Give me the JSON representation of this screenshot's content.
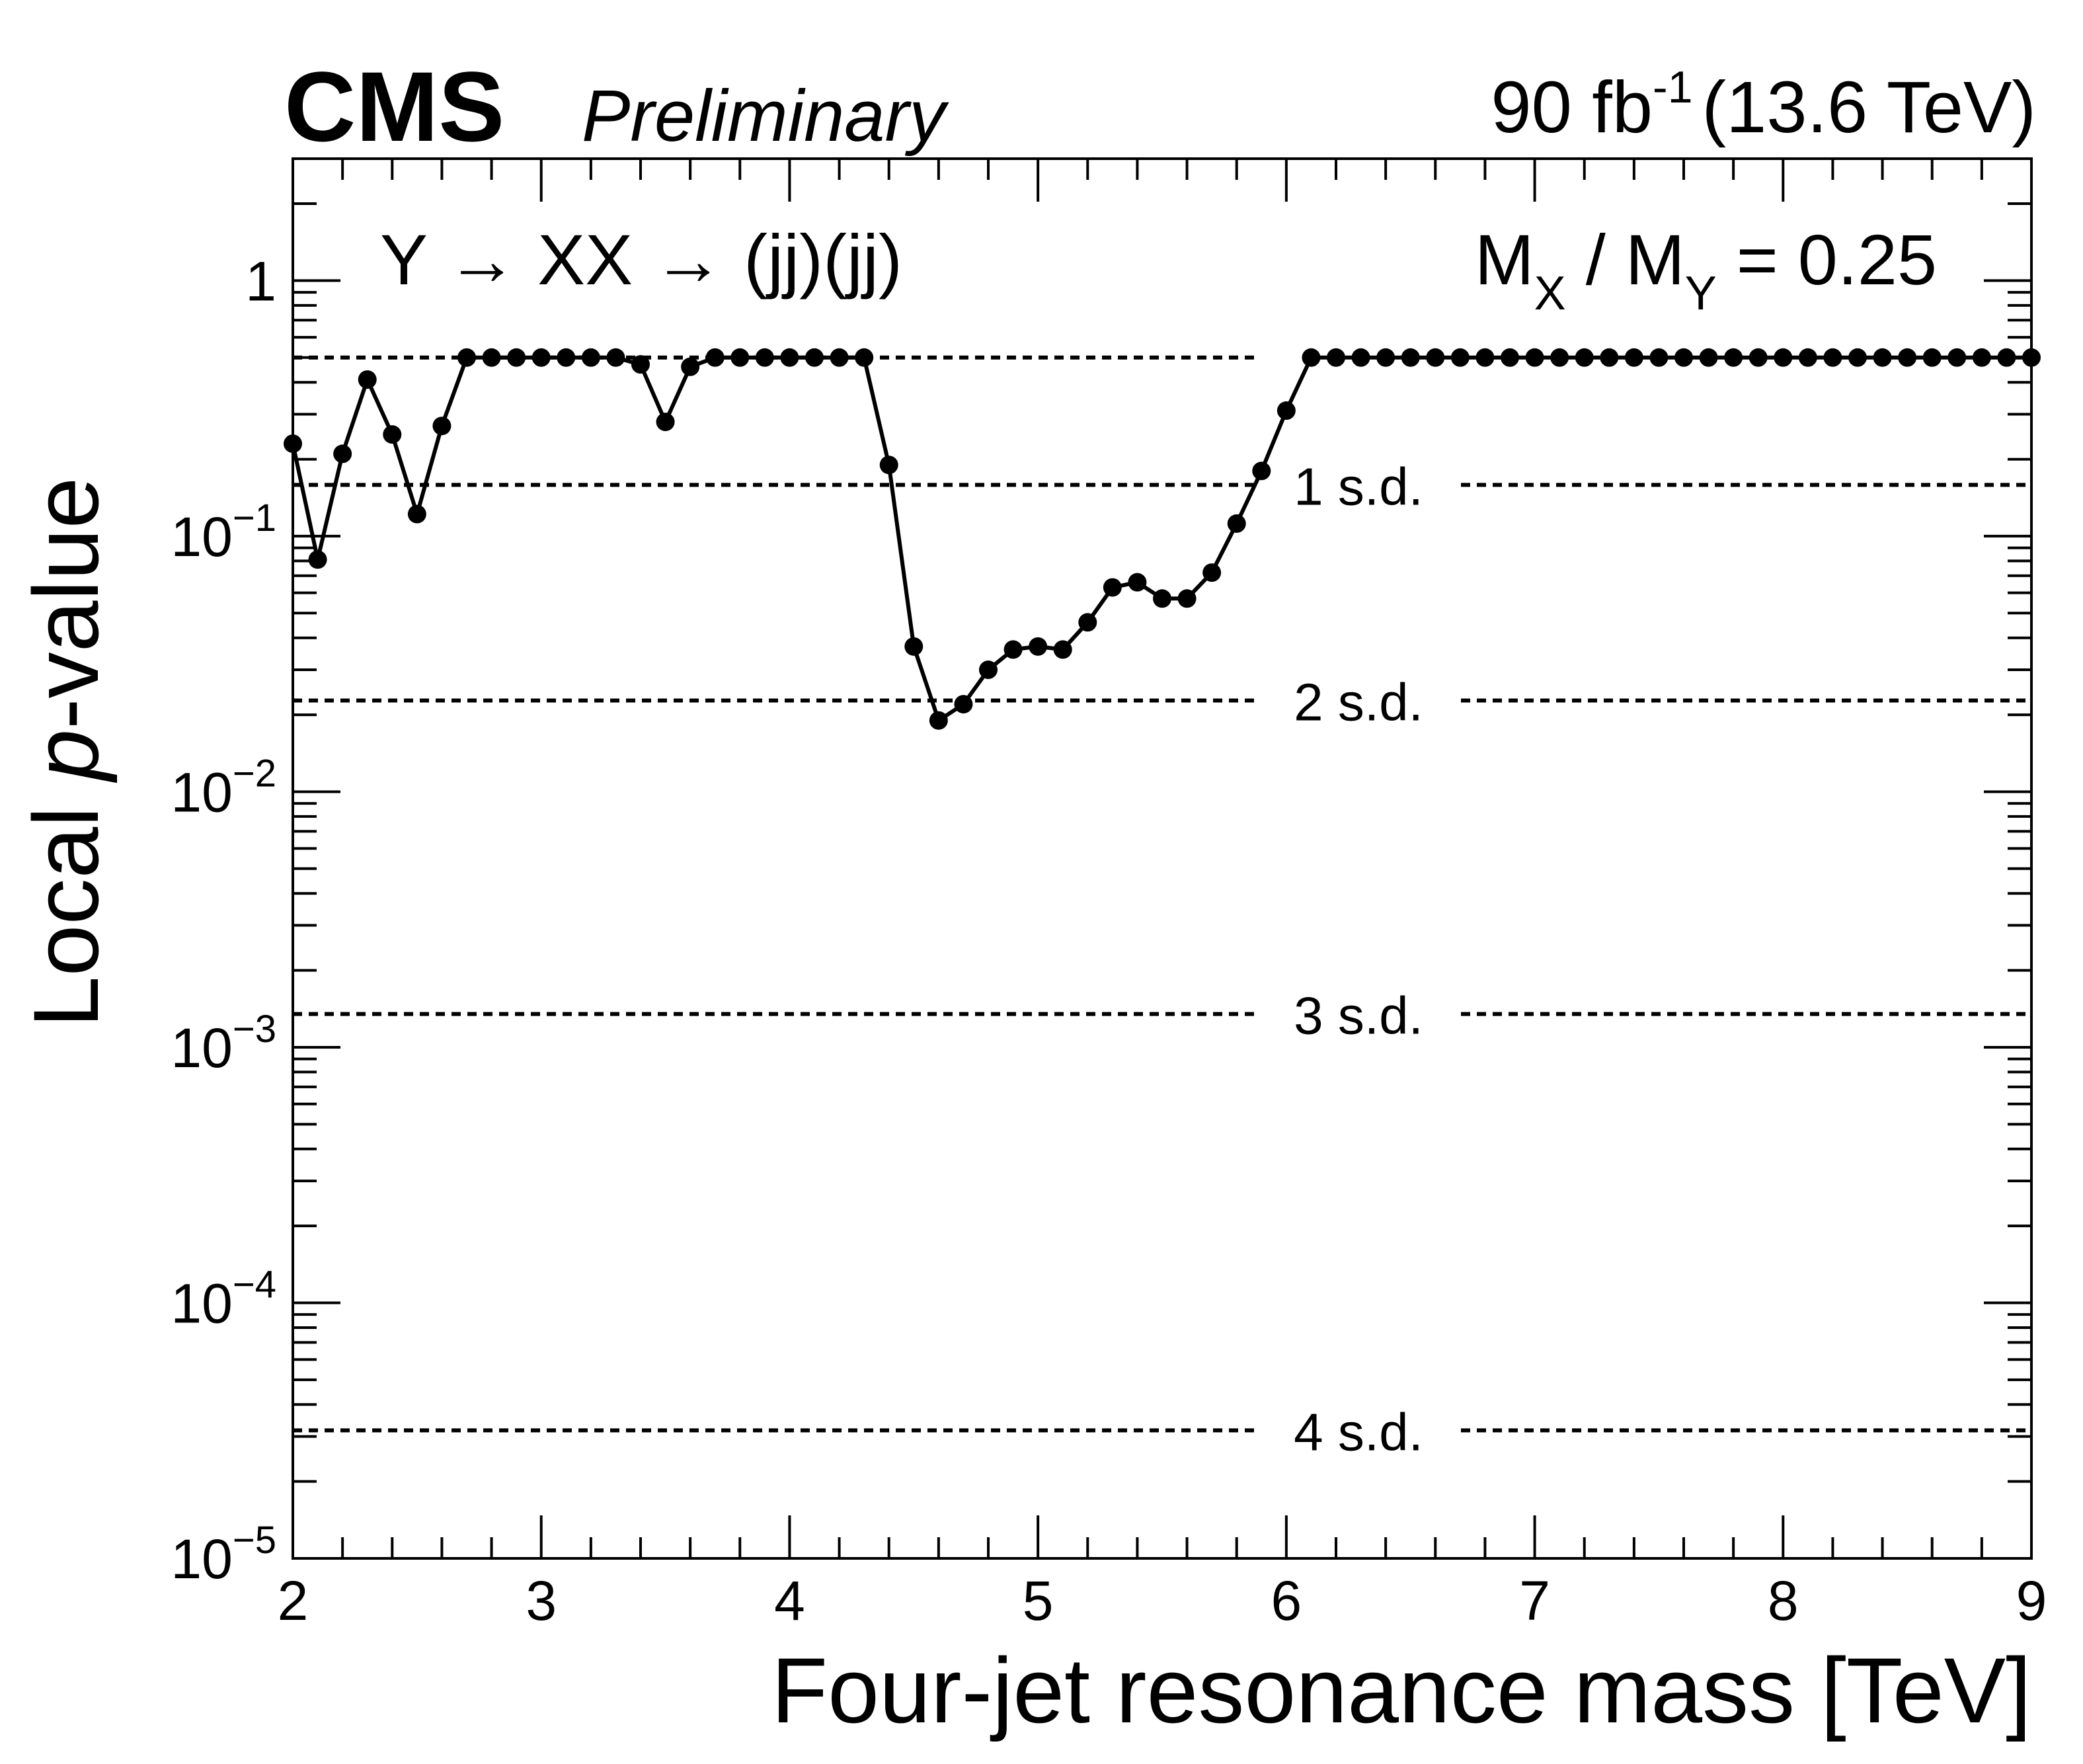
{
  "header": {
    "experiment": "CMS",
    "status": "Preliminary",
    "lumi_value": "90 fb",
    "lumi_exp": "-1",
    "energy": "(13.6 TeV)"
  },
  "annotations": {
    "process": "Y → XX → (jj)(jj)",
    "ratio_m1": "M",
    "ratio_sub1": "X",
    "ratio_mid": " / M",
    "ratio_sub2": "Y",
    "ratio_end": " = 0.25"
  },
  "chart_data": {
    "type": "line",
    "xlabel": "Four-jet resonance mass [TeV]",
    "ylabel_prefix": "Local ",
    "ylabel_italic": "p",
    "ylabel_suffix": "-value",
    "xlim": [
      2,
      9
    ],
    "ylim": [
      1e-05,
      3
    ],
    "yscale": "log",
    "x_ticks": [
      2,
      3,
      4,
      5,
      6,
      7,
      8,
      9
    ],
    "y_ticks": [
      {
        "value": 1e-05,
        "base": "10",
        "exp": "−5"
      },
      {
        "value": 0.0001,
        "base": "10",
        "exp": "−4"
      },
      {
        "value": 0.001,
        "base": "10",
        "exp": "−3"
      },
      {
        "value": 0.01,
        "base": "10",
        "exp": "−2"
      },
      {
        "value": 0.1,
        "base": "10",
        "exp": "−1"
      },
      {
        "value": 1,
        "base": "1",
        "exp": ""
      }
    ],
    "reference_lines": [
      {
        "label": "",
        "value": 0.5
      },
      {
        "label": "1 s.d.",
        "value": 0.1587
      },
      {
        "label": "2 s.d.",
        "value": 0.02275
      },
      {
        "label": "3 s.d.",
        "value": 0.00135
      },
      {
        "label": "4 s.d.",
        "value": 3.17e-05
      }
    ],
    "series": [
      {
        "x": [
          2.0,
          2.1,
          2.2,
          2.3,
          2.4,
          2.5,
          2.6,
          2.7,
          2.8,
          2.9,
          3.0,
          3.1,
          3.2,
          3.3,
          3.4,
          3.5,
          3.6,
          3.7,
          3.8,
          3.9,
          4.0,
          4.1,
          4.2,
          4.3,
          4.4,
          4.5,
          4.6,
          4.7,
          4.8,
          4.9,
          5.0,
          5.1,
          5.2,
          5.3,
          5.4,
          5.5,
          5.6,
          5.7,
          5.8,
          5.9,
          6.0,
          6.1,
          6.2,
          6.3,
          6.4,
          6.5,
          6.6,
          6.7,
          6.8,
          6.9,
          7.0,
          7.1,
          7.2,
          7.3,
          7.4,
          7.5,
          7.6,
          7.7,
          7.8,
          7.9,
          8.0,
          8.1,
          8.2,
          8.3,
          8.4,
          8.5,
          8.6,
          8.7,
          8.8,
          8.9,
          9.0
        ],
        "y": [
          0.23,
          0.081,
          0.21,
          0.41,
          0.25,
          0.122,
          0.27,
          0.5,
          0.5,
          0.5,
          0.5,
          0.5,
          0.5,
          0.5,
          0.47,
          0.28,
          0.46,
          0.5,
          0.5,
          0.5,
          0.5,
          0.5,
          0.5,
          0.5,
          0.19,
          0.037,
          0.019,
          0.022,
          0.03,
          0.036,
          0.037,
          0.036,
          0.046,
          0.063,
          0.066,
          0.057,
          0.057,
          0.072,
          0.112,
          0.18,
          0.31,
          0.5,
          0.5,
          0.5,
          0.5,
          0.5,
          0.5,
          0.5,
          0.5,
          0.5,
          0.5,
          0.5,
          0.5,
          0.5,
          0.5,
          0.5,
          0.5,
          0.5,
          0.5,
          0.5,
          0.5,
          0.5,
          0.5,
          0.5,
          0.5,
          0.5,
          0.5,
          0.5,
          0.5,
          0.5,
          0.5
        ]
      }
    ]
  }
}
